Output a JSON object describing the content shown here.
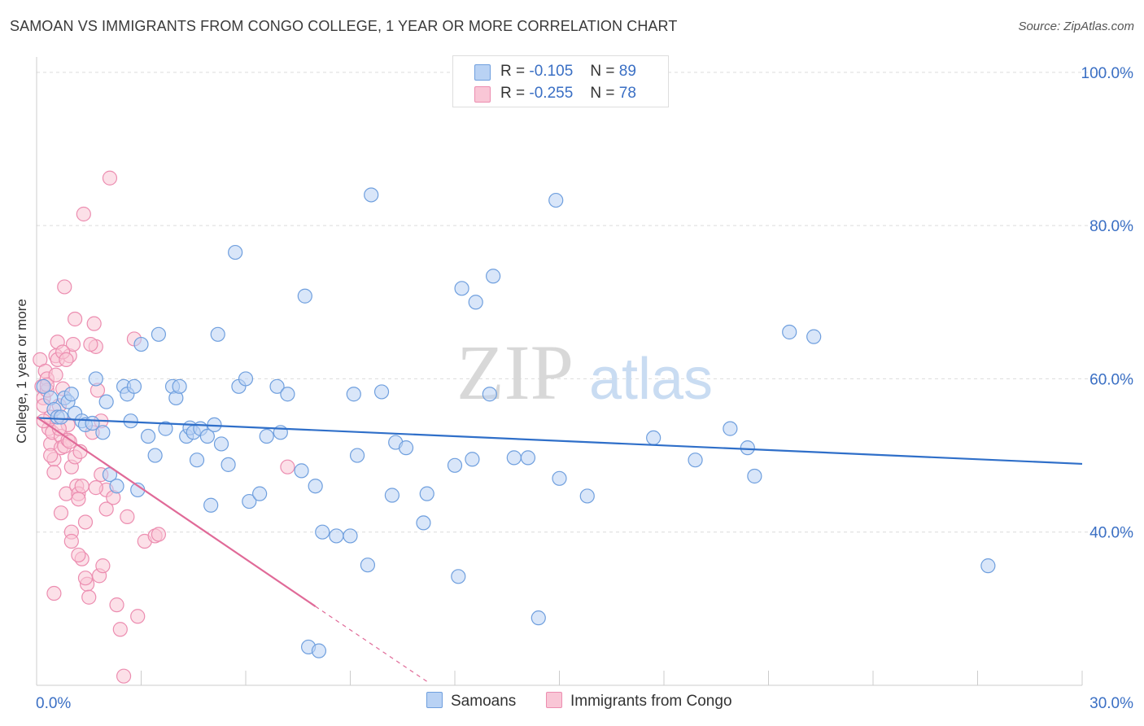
{
  "title": "SAMOAN VS IMMIGRANTS FROM CONGO COLLEGE, 1 YEAR OR MORE CORRELATION CHART",
  "source": "Source: ZipAtlas.com",
  "watermark": {
    "zip": "ZIP",
    "atlas": "atlas"
  },
  "legend": {
    "row1": {
      "r_label": "R =",
      "r_value": "-0.105",
      "n_label": "N =",
      "n_value": "89"
    },
    "row2": {
      "r_label": "R =",
      "r_value": "-0.255",
      "n_label": "N =",
      "n_value": "78"
    }
  },
  "colors": {
    "blue_fill": "#b9d2f4",
    "blue_stroke": "#6f9fde",
    "blue_line": "#2f6fc9",
    "pink_fill": "#f9c6d6",
    "pink_stroke": "#ec8db0",
    "pink_line": "#e06a98",
    "tick_text": "#3a6fc4"
  },
  "chart_data": {
    "type": "scatter",
    "title": "SAMOAN VS IMMIGRANTS FROM CONGO COLLEGE, 1 YEAR OR MORE CORRELATION CHART",
    "xlabel": "",
    "ylabel": "College, 1 year or more",
    "xlim": [
      0,
      30
    ],
    "ylim": [
      20,
      102
    ],
    "x_ticks": [
      {
        "v": 0,
        "label": "0.0%"
      },
      {
        "v": 30,
        "label": "30.0%"
      }
    ],
    "y_ticks": [
      {
        "v": 100,
        "label": "100.0%"
      },
      {
        "v": 80,
        "label": "80.0%"
      },
      {
        "v": 60,
        "label": "60.0%"
      },
      {
        "v": 40,
        "label": "40.0%"
      }
    ],
    "series": [
      {
        "name": "Samoans",
        "trend": {
          "x": [
            0.0,
            30.0
          ],
          "y": [
            54.9,
            48.9
          ]
        },
        "points": [
          [
            0.2,
            59.0
          ],
          [
            0.4,
            57.5
          ],
          [
            0.5,
            56.0
          ],
          [
            0.6,
            55.0
          ],
          [
            0.7,
            55.0
          ],
          [
            0.8,
            57.5
          ],
          [
            0.9,
            57.0
          ],
          [
            1.0,
            58.0
          ],
          [
            1.1,
            55.5
          ],
          [
            1.3,
            54.5
          ],
          [
            1.4,
            54.0
          ],
          [
            1.6,
            54.2
          ],
          [
            1.7,
            60.0
          ],
          [
            1.9,
            53.0
          ],
          [
            2.0,
            57.0
          ],
          [
            2.1,
            47.5
          ],
          [
            2.3,
            46.0
          ],
          [
            2.5,
            59.0
          ],
          [
            2.6,
            58.0
          ],
          [
            2.7,
            54.5
          ],
          [
            2.8,
            59.0
          ],
          [
            2.9,
            45.5
          ],
          [
            3.0,
            64.5
          ],
          [
            3.2,
            52.5
          ],
          [
            3.4,
            50.0
          ],
          [
            3.5,
            65.8
          ],
          [
            3.7,
            53.5
          ],
          [
            3.9,
            59.0
          ],
          [
            4.0,
            57.5
          ],
          [
            4.1,
            59.0
          ],
          [
            4.3,
            52.5
          ],
          [
            4.4,
            53.6
          ],
          [
            4.5,
            53.0
          ],
          [
            4.6,
            49.4
          ],
          [
            4.7,
            53.5
          ],
          [
            4.9,
            52.5
          ],
          [
            5.0,
            43.5
          ],
          [
            5.1,
            54.0
          ],
          [
            5.2,
            65.8
          ],
          [
            5.3,
            51.5
          ],
          [
            5.5,
            48.8
          ],
          [
            5.7,
            76.5
          ],
          [
            5.8,
            59.0
          ],
          [
            6.0,
            60.0
          ],
          [
            6.1,
            44.0
          ],
          [
            6.4,
            45.0
          ],
          [
            6.6,
            52.5
          ],
          [
            6.9,
            59.0
          ],
          [
            7.0,
            53.0
          ],
          [
            7.2,
            58.0
          ],
          [
            7.6,
            48.0
          ],
          [
            7.7,
            70.8
          ],
          [
            7.8,
            25.0
          ],
          [
            8.0,
            46.0
          ],
          [
            8.1,
            24.5
          ],
          [
            8.2,
            40.0
          ],
          [
            8.6,
            39.5
          ],
          [
            9.0,
            39.5
          ],
          [
            9.1,
            58.0
          ],
          [
            9.2,
            50.0
          ],
          [
            9.5,
            35.7
          ],
          [
            9.6,
            84.0
          ],
          [
            9.9,
            58.3
          ],
          [
            10.2,
            44.8
          ],
          [
            10.3,
            51.7
          ],
          [
            10.6,
            51.0
          ],
          [
            11.1,
            41.2
          ],
          [
            11.2,
            45.0
          ],
          [
            12.0,
            48.7
          ],
          [
            12.1,
            34.2
          ],
          [
            12.2,
            71.8
          ],
          [
            12.5,
            49.5
          ],
          [
            12.6,
            70.0
          ],
          [
            13.0,
            58.0
          ],
          [
            13.1,
            73.4
          ],
          [
            13.7,
            49.7
          ],
          [
            14.1,
            49.7
          ],
          [
            14.4,
            28.8
          ],
          [
            14.9,
            83.3
          ],
          [
            15.0,
            47.0
          ],
          [
            15.8,
            44.7
          ],
          [
            17.7,
            52.3
          ],
          [
            18.9,
            49.4
          ],
          [
            19.9,
            53.5
          ],
          [
            20.4,
            51.0
          ],
          [
            20.6,
            47.3
          ],
          [
            21.6,
            66.1
          ],
          [
            22.3,
            65.5
          ],
          [
            27.3,
            35.6
          ]
        ]
      },
      {
        "name": "Immigrants from Congo",
        "trend": {
          "x": [
            0.0,
            8.0
          ],
          "y": [
            55.0,
            30.3
          ]
        },
        "trend_dashed": {
          "x": [
            8.0,
            11.2
          ],
          "y": [
            30.3,
            20.5
          ]
        },
        "points": [
          [
            0.1,
            62.5
          ],
          [
            0.15,
            59.0
          ],
          [
            0.2,
            57.5
          ],
          [
            0.2,
            56.5
          ],
          [
            0.25,
            61.0
          ],
          [
            0.3,
            60.0
          ],
          [
            0.3,
            58.5
          ],
          [
            0.35,
            53.5
          ],
          [
            0.4,
            55.0
          ],
          [
            0.4,
            51.5
          ],
          [
            0.45,
            53.0
          ],
          [
            0.5,
            49.5
          ],
          [
            0.5,
            47.8
          ],
          [
            0.55,
            63.0
          ],
          [
            0.6,
            64.8
          ],
          [
            0.6,
            62.5
          ],
          [
            0.65,
            56.5
          ],
          [
            0.7,
            52.5
          ],
          [
            0.7,
            51.0
          ],
          [
            0.75,
            58.7
          ],
          [
            0.8,
            72.0
          ],
          [
            0.8,
            51.2
          ],
          [
            0.85,
            45.0
          ],
          [
            0.9,
            54.0
          ],
          [
            0.9,
            52.0
          ],
          [
            0.95,
            63.0
          ],
          [
            1.0,
            48.5
          ],
          [
            1.0,
            40.0
          ],
          [
            1.05,
            64.5
          ],
          [
            1.1,
            67.8
          ],
          [
            1.1,
            49.8
          ],
          [
            1.15,
            46.0
          ],
          [
            1.2,
            45.0
          ],
          [
            1.2,
            44.3
          ],
          [
            1.25,
            50.5
          ],
          [
            1.3,
            36.5
          ],
          [
            1.35,
            81.5
          ],
          [
            1.4,
            41.3
          ],
          [
            1.45,
            33.2
          ],
          [
            1.5,
            31.5
          ],
          [
            1.6,
            53.0
          ],
          [
            1.7,
            64.2
          ],
          [
            1.75,
            58.5
          ],
          [
            1.8,
            34.3
          ],
          [
            1.85,
            47.5
          ],
          [
            1.9,
            35.6
          ],
          [
            2.0,
            45.5
          ],
          [
            2.0,
            43.0
          ],
          [
            2.1,
            86.2
          ],
          [
            2.3,
            30.5
          ],
          [
            2.4,
            27.3
          ],
          [
            2.5,
            21.2
          ],
          [
            2.6,
            42.0
          ],
          [
            2.8,
            65.2
          ],
          [
            2.9,
            29.0
          ],
          [
            3.1,
            38.8
          ],
          [
            3.4,
            39.5
          ],
          [
            3.5,
            39.7
          ],
          [
            7.2,
            48.5
          ],
          [
            0.2,
            54.5
          ],
          [
            0.3,
            59.2
          ],
          [
            0.55,
            60.5
          ],
          [
            0.65,
            53.5
          ],
          [
            0.75,
            63.5
          ],
          [
            0.85,
            62.5
          ],
          [
            1.0,
            38.8
          ],
          [
            1.2,
            37.0
          ],
          [
            1.4,
            34.0
          ],
          [
            1.55,
            64.5
          ],
          [
            1.65,
            67.2
          ],
          [
            1.7,
            45.8
          ],
          [
            1.85,
            54.5
          ],
          [
            2.2,
            44.5
          ],
          [
            0.4,
            50.0
          ],
          [
            0.95,
            51.8
          ],
          [
            1.3,
            46.0
          ],
          [
            0.5,
            32.0
          ],
          [
            0.7,
            42.5
          ]
        ]
      }
    ]
  }
}
